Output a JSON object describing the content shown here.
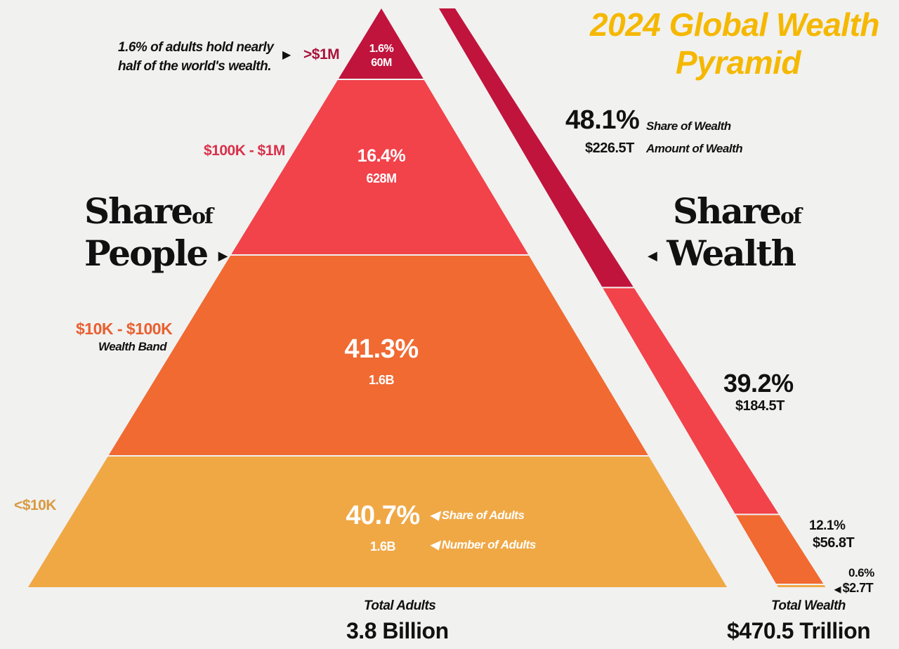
{
  "title_line1": "2024 Global Wealth",
  "title_line2": "Pyramid",
  "note": [
    "1.6% of adults hold nearly",
    "half of the world's wealth."
  ],
  "share_people": {
    "big": "Share",
    "small": "of",
    "line2": "People"
  },
  "share_wealth": {
    "big": "Share",
    "small": "of",
    "line2": "Wealth"
  },
  "wealth_band_label": "Wealth Band",
  "share_of_adults_label": "Share of Adults",
  "number_of_adults_label": "Number of Adults",
  "share_of_wealth_label": "Share of Wealth",
  "amount_of_wealth_label": "Amount of Wealth",
  "total_adults_label": "Total Adults",
  "total_adults_value": "3.8 Billion",
  "total_wealth_label": "Total Wealth",
  "total_wealth_value": "$470.5 Trillion",
  "colors": {
    "top": "#c0143c",
    "upper": "#f2424a",
    "middle": "#f06a32",
    "lower": "#f0a845",
    "title": "#f5b800"
  },
  "chart_data": {
    "type": "pyramid",
    "title": "2024 Global Wealth Pyramid",
    "bands": [
      {
        "band": ">$1M",
        "share_adults": "1.6%",
        "adults": "60M",
        "share_wealth": "48.1%",
        "wealth": "$226.5T"
      },
      {
        "band": "$100K - $1M",
        "share_adults": "16.4%",
        "adults": "628M",
        "share_wealth": "39.2%",
        "wealth": "$184.5T"
      },
      {
        "band": "$10K - $100K",
        "share_adults": "41.3%",
        "adults": "1.6B",
        "share_wealth": "12.1%",
        "wealth": "$56.8T"
      },
      {
        "band": "<$10K",
        "share_adults": "40.7%",
        "adults": "1.6B",
        "share_wealth": "0.6%",
        "wealth": "$2.7T"
      }
    ]
  }
}
